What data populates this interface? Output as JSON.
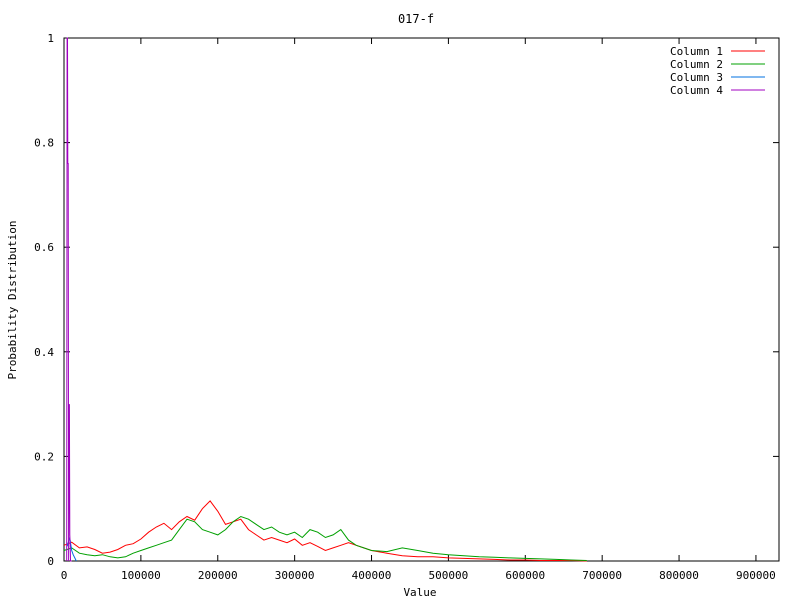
{
  "chart_data": {
    "type": "line",
    "title": "017-f",
    "xlabel": "Value",
    "ylabel": "Probability Distribution",
    "xlim": [
      0,
      930000
    ],
    "ylim": [
      0,
      1
    ],
    "xticks": [
      0,
      100000,
      200000,
      300000,
      400000,
      500000,
      600000,
      700000,
      800000,
      900000
    ],
    "yticks": [
      0,
      0.2,
      0.4,
      0.6,
      0.8,
      1
    ],
    "ytick_labels": [
      "0",
      "0.2",
      "0.4",
      "0.6",
      "0.8",
      "1"
    ],
    "legend_position": "top-right",
    "grid": false,
    "series": [
      {
        "name": "Column 1",
        "color": "#ff0000",
        "x": [
          0,
          10000,
          20000,
          30000,
          40000,
          50000,
          60000,
          70000,
          80000,
          90000,
          100000,
          110000,
          120000,
          130000,
          140000,
          150000,
          160000,
          170000,
          180000,
          190000,
          200000,
          210000,
          220000,
          230000,
          240000,
          250000,
          260000,
          270000,
          280000,
          290000,
          300000,
          310000,
          320000,
          330000,
          340000,
          350000,
          360000,
          370000,
          380000,
          390000,
          400000,
          420000,
          440000,
          460000,
          480000,
          500000,
          520000,
          540000,
          560000,
          580000,
          600000,
          620000,
          640000,
          660000,
          680000
        ],
        "y": [
          0.03,
          0.036,
          0.025,
          0.027,
          0.022,
          0.015,
          0.017,
          0.022,
          0.03,
          0.033,
          0.042,
          0.055,
          0.065,
          0.072,
          0.06,
          0.075,
          0.085,
          0.078,
          0.1,
          0.115,
          0.095,
          0.07,
          0.075,
          0.08,
          0.06,
          0.05,
          0.04,
          0.045,
          0.04,
          0.035,
          0.042,
          0.03,
          0.035,
          0.028,
          0.02,
          0.025,
          0.03,
          0.035,
          0.03,
          0.025,
          0.02,
          0.015,
          0.01,
          0.008,
          0.008,
          0.006,
          0.005,
          0.004,
          0.003,
          0.002,
          0.002,
          0.001,
          0.001,
          0.001,
          0
        ]
      },
      {
        "name": "Column 2",
        "color": "#00a000",
        "x": [
          0,
          10000,
          20000,
          30000,
          40000,
          50000,
          60000,
          70000,
          80000,
          90000,
          100000,
          110000,
          120000,
          130000,
          140000,
          150000,
          160000,
          170000,
          180000,
          190000,
          200000,
          210000,
          220000,
          230000,
          240000,
          250000,
          260000,
          270000,
          280000,
          290000,
          300000,
          310000,
          320000,
          330000,
          340000,
          350000,
          360000,
          370000,
          380000,
          390000,
          400000,
          420000,
          440000,
          460000,
          480000,
          500000,
          520000,
          540000,
          560000,
          580000,
          600000,
          620000,
          640000,
          660000,
          680000
        ],
        "y": [
          0.02,
          0.025,
          0.015,
          0.012,
          0.01,
          0.012,
          0.008,
          0.006,
          0.008,
          0.015,
          0.02,
          0.025,
          0.03,
          0.035,
          0.04,
          0.06,
          0.08,
          0.075,
          0.06,
          0.055,
          0.05,
          0.06,
          0.075,
          0.085,
          0.08,
          0.07,
          0.06,
          0.065,
          0.055,
          0.05,
          0.055,
          0.045,
          0.06,
          0.055,
          0.045,
          0.05,
          0.06,
          0.04,
          0.03,
          0.025,
          0.02,
          0.018,
          0.025,
          0.02,
          0.015,
          0.012,
          0.01,
          0.008,
          0.007,
          0.006,
          0.005,
          0.004,
          0.003,
          0.002,
          0.001
        ]
      },
      {
        "name": "Column 3",
        "color": "#0070e0",
        "x": [
          4000,
          5000,
          6000,
          7000,
          8000,
          9000,
          10000,
          12000,
          14000,
          16000
        ],
        "y": [
          0.028,
          0.032,
          0.038,
          0.043,
          0.04,
          0.03,
          0.02,
          0.012,
          0.006,
          0.0
        ]
      },
      {
        "name": "Column 4",
        "color": "#a000c0",
        "x": [
          3500,
          4000,
          4500,
          5000,
          5500,
          6000,
          6500,
          7000,
          7500,
          8000,
          8500,
          9000,
          10000
        ],
        "y": [
          0.0,
          1.0,
          1.0,
          0.76,
          0.76,
          0.0,
          0.29,
          0.3,
          0.05,
          0.03,
          0.0,
          0.0,
          0.0
        ]
      }
    ]
  }
}
